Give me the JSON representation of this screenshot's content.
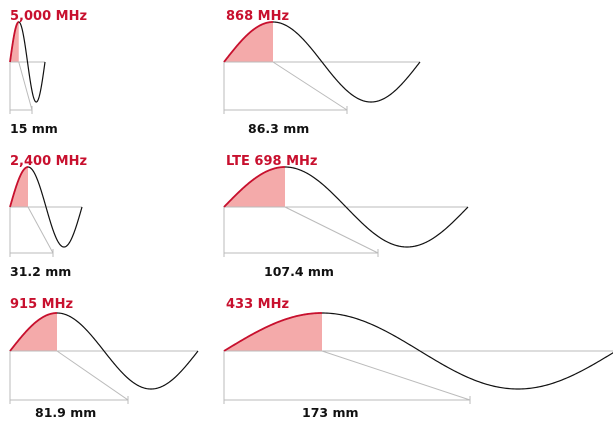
{
  "colors": {
    "accent": "#c8102e",
    "fill": "#f4aaaa",
    "wave": "#111111",
    "axis": "#bbbbbb"
  },
  "panels": [
    {
      "frequency_label": "5,000 MHz",
      "length_label": "15 mm"
    },
    {
      "frequency_label": "868 MHz",
      "length_label": "86.3 mm"
    },
    {
      "frequency_label": "2,400 MHz",
      "length_label": "31.2 mm"
    },
    {
      "frequency_label": "LTE 698 MHz",
      "length_label": "107.4 mm"
    },
    {
      "frequency_label": "915 MHz",
      "length_label": "81.9 mm"
    },
    {
      "frequency_label": "433 MHz",
      "length_label": "173 mm"
    }
  ]
}
